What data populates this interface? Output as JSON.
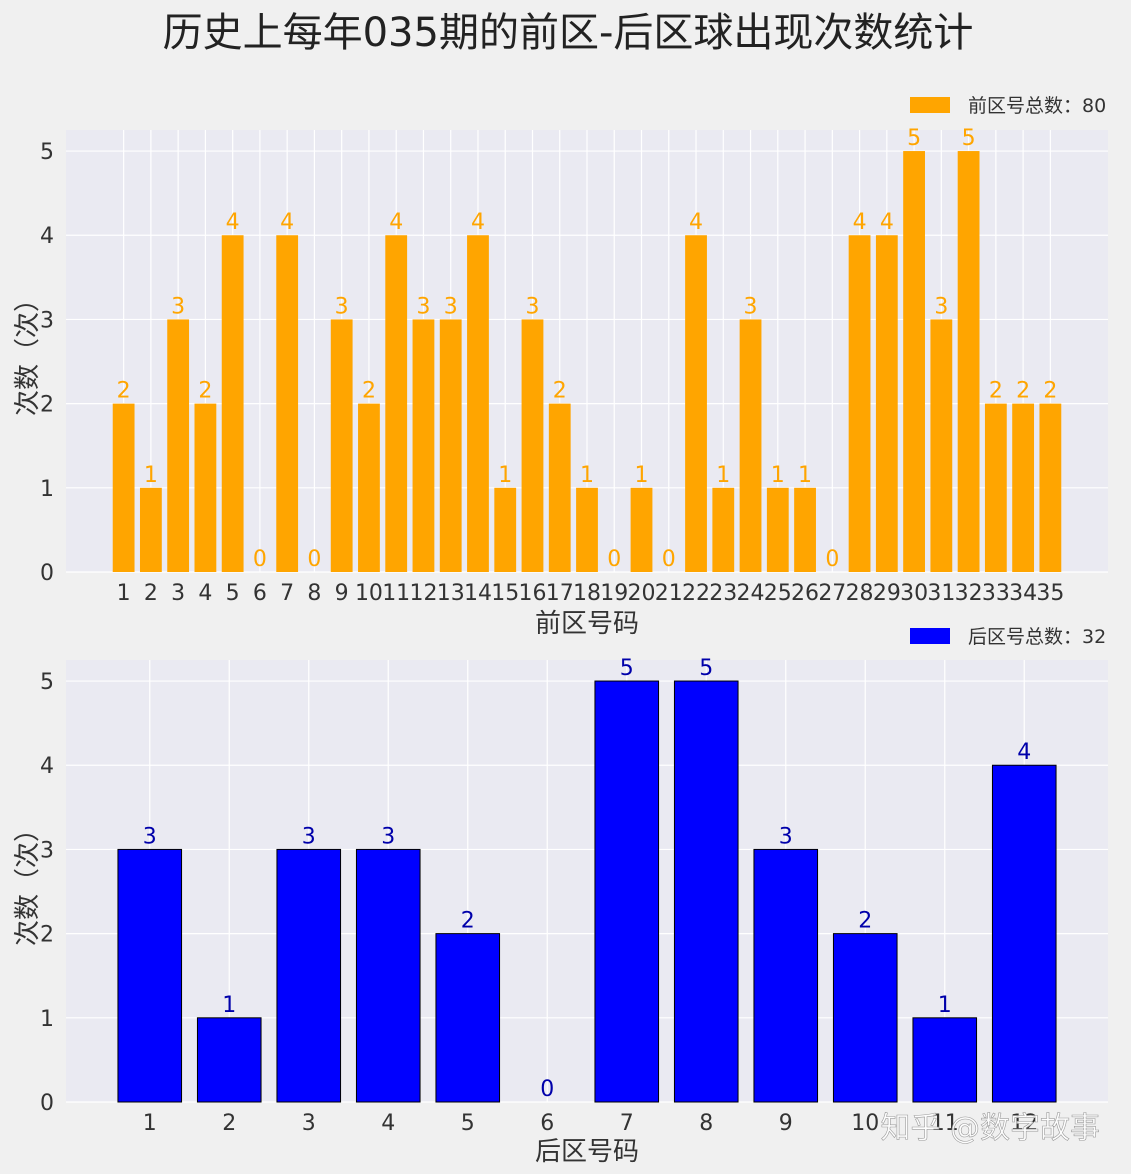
{
  "title": "历史上每年035期的前区-后区球出现次数统计",
  "watermark": "知乎 @数字故事",
  "colors": {
    "front_bar": "#FFA500",
    "back_bar": "#0000FF",
    "back_label": "#0000AA",
    "plot_bg": "#EAEAF2",
    "grid": "#FFFFFF",
    "page_bg": "#F0F0F0"
  },
  "chart_data": [
    {
      "type": "bar",
      "legend": "前区号总数：80",
      "legend_position": "top-right",
      "xlabel": "前区号码",
      "ylabel": "次数（次）",
      "ylim": [
        0,
        5.25
      ],
      "yticks": [
        0,
        1,
        2,
        3,
        4,
        5
      ],
      "grid": true,
      "categories": [
        "1",
        "2",
        "3",
        "4",
        "5",
        "6",
        "7",
        "8",
        "9",
        "10",
        "11",
        "12",
        "13",
        "14",
        "15",
        "16",
        "17",
        "18",
        "19",
        "20",
        "21",
        "22",
        "23",
        "24",
        "25",
        "26",
        "27",
        "28",
        "29",
        "30",
        "31",
        "32",
        "33",
        "34",
        "35"
      ],
      "values": [
        2,
        1,
        3,
        2,
        4,
        0,
        4,
        0,
        3,
        2,
        4,
        3,
        3,
        4,
        1,
        3,
        2,
        1,
        0,
        1,
        0,
        4,
        1,
        3,
        1,
        1,
        0,
        4,
        4,
        5,
        3,
        5,
        2,
        2,
        2
      ]
    },
    {
      "type": "bar",
      "legend": "后区号总数：32",
      "legend_position": "top-right",
      "xlabel": "后区号码",
      "ylabel": "次数（次）",
      "ylim": [
        0,
        5.25
      ],
      "yticks": [
        0,
        1,
        2,
        3,
        4,
        5
      ],
      "grid": true,
      "categories": [
        "1",
        "2",
        "3",
        "4",
        "5",
        "6",
        "7",
        "8",
        "9",
        "10",
        "11",
        "12"
      ],
      "values": [
        3,
        1,
        3,
        3,
        2,
        0,
        5,
        5,
        3,
        2,
        1,
        4
      ]
    }
  ]
}
